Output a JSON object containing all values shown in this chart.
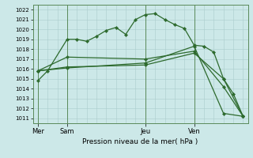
{
  "bg_color": "#cce8e8",
  "grid_color": "#aacccc",
  "line_color": "#2d6a2d",
  "marker_color": "#2d6a2d",
  "xlabel": "Pression niveau de la mer( hPa )",
  "ylim": [
    1010.5,
    1022.5
  ],
  "ytick_vals": [
    1011,
    1012,
    1013,
    1014,
    1015,
    1016,
    1017,
    1018,
    1019,
    1020,
    1021,
    1022
  ],
  "day_labels": [
    "Mer",
    "Sam",
    "Jeu",
    "Ven"
  ],
  "day_positions": [
    0,
    3,
    11,
    16
  ],
  "xlim": [
    -0.5,
    21.5
  ],
  "series": [
    {
      "x": [
        0,
        1,
        3,
        4,
        5,
        6,
        7,
        8,
        9,
        10,
        11,
        12,
        13,
        14,
        15,
        16,
        17,
        18,
        19,
        20,
        21
      ],
      "y": [
        1014.8,
        1015.8,
        1019.0,
        1019.0,
        1018.8,
        1019.3,
        1019.9,
        1020.2,
        1019.5,
        1021.0,
        1021.5,
        1021.6,
        1021.0,
        1020.5,
        1020.1,
        1018.4,
        1018.3,
        1017.7,
        1015.0,
        1013.5,
        1011.2
      ]
    },
    {
      "x": [
        0,
        3,
        11,
        16,
        19,
        21
      ],
      "y": [
        1015.8,
        1017.2,
        1017.0,
        1017.8,
        1014.2,
        1011.2
      ]
    },
    {
      "x": [
        0,
        3,
        11,
        16,
        19,
        21
      ],
      "y": [
        1015.8,
        1016.1,
        1016.6,
        1018.3,
        1011.5,
        1011.2
      ]
    },
    {
      "x": [
        0,
        3,
        11,
        16,
        19,
        21
      ],
      "y": [
        1015.8,
        1016.2,
        1016.4,
        1017.6,
        1015.0,
        1011.2
      ]
    }
  ]
}
